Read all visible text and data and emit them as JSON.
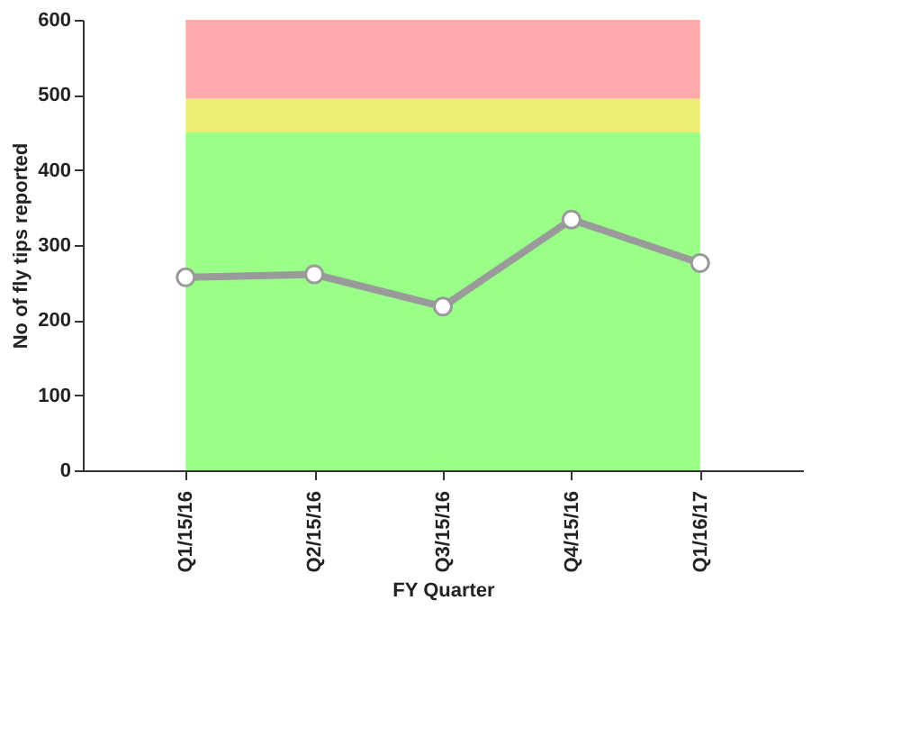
{
  "chart_data": {
    "type": "line",
    "xlabel": "FY Quarter",
    "ylabel": "No of fly tips reported",
    "categories": [
      "Q1/15/16",
      "Q2/15/16",
      "Q3/15/16",
      "Q4/15/16",
      "Q1/16/17"
    ],
    "series": [
      {
        "color": "#9a9a9a",
        "values": [
          257,
          261,
          218,
          334,
          276
        ]
      }
    ],
    "ylim": [
      0,
      600
    ],
    "yticks": [
      0,
      100,
      200,
      300,
      400,
      500,
      600
    ],
    "grid": false,
    "marker": "circle",
    "line_style": "solid",
    "bands": [
      {
        "axis": "y",
        "from": 0,
        "to": 450,
        "color": "#99ff88"
      },
      {
        "axis": "y",
        "from": 450,
        "to": 495,
        "color": "#eeee77"
      },
      {
        "axis": "y",
        "from": 495,
        "to": 600,
        "color": "#ffaaaa"
      }
    ]
  }
}
